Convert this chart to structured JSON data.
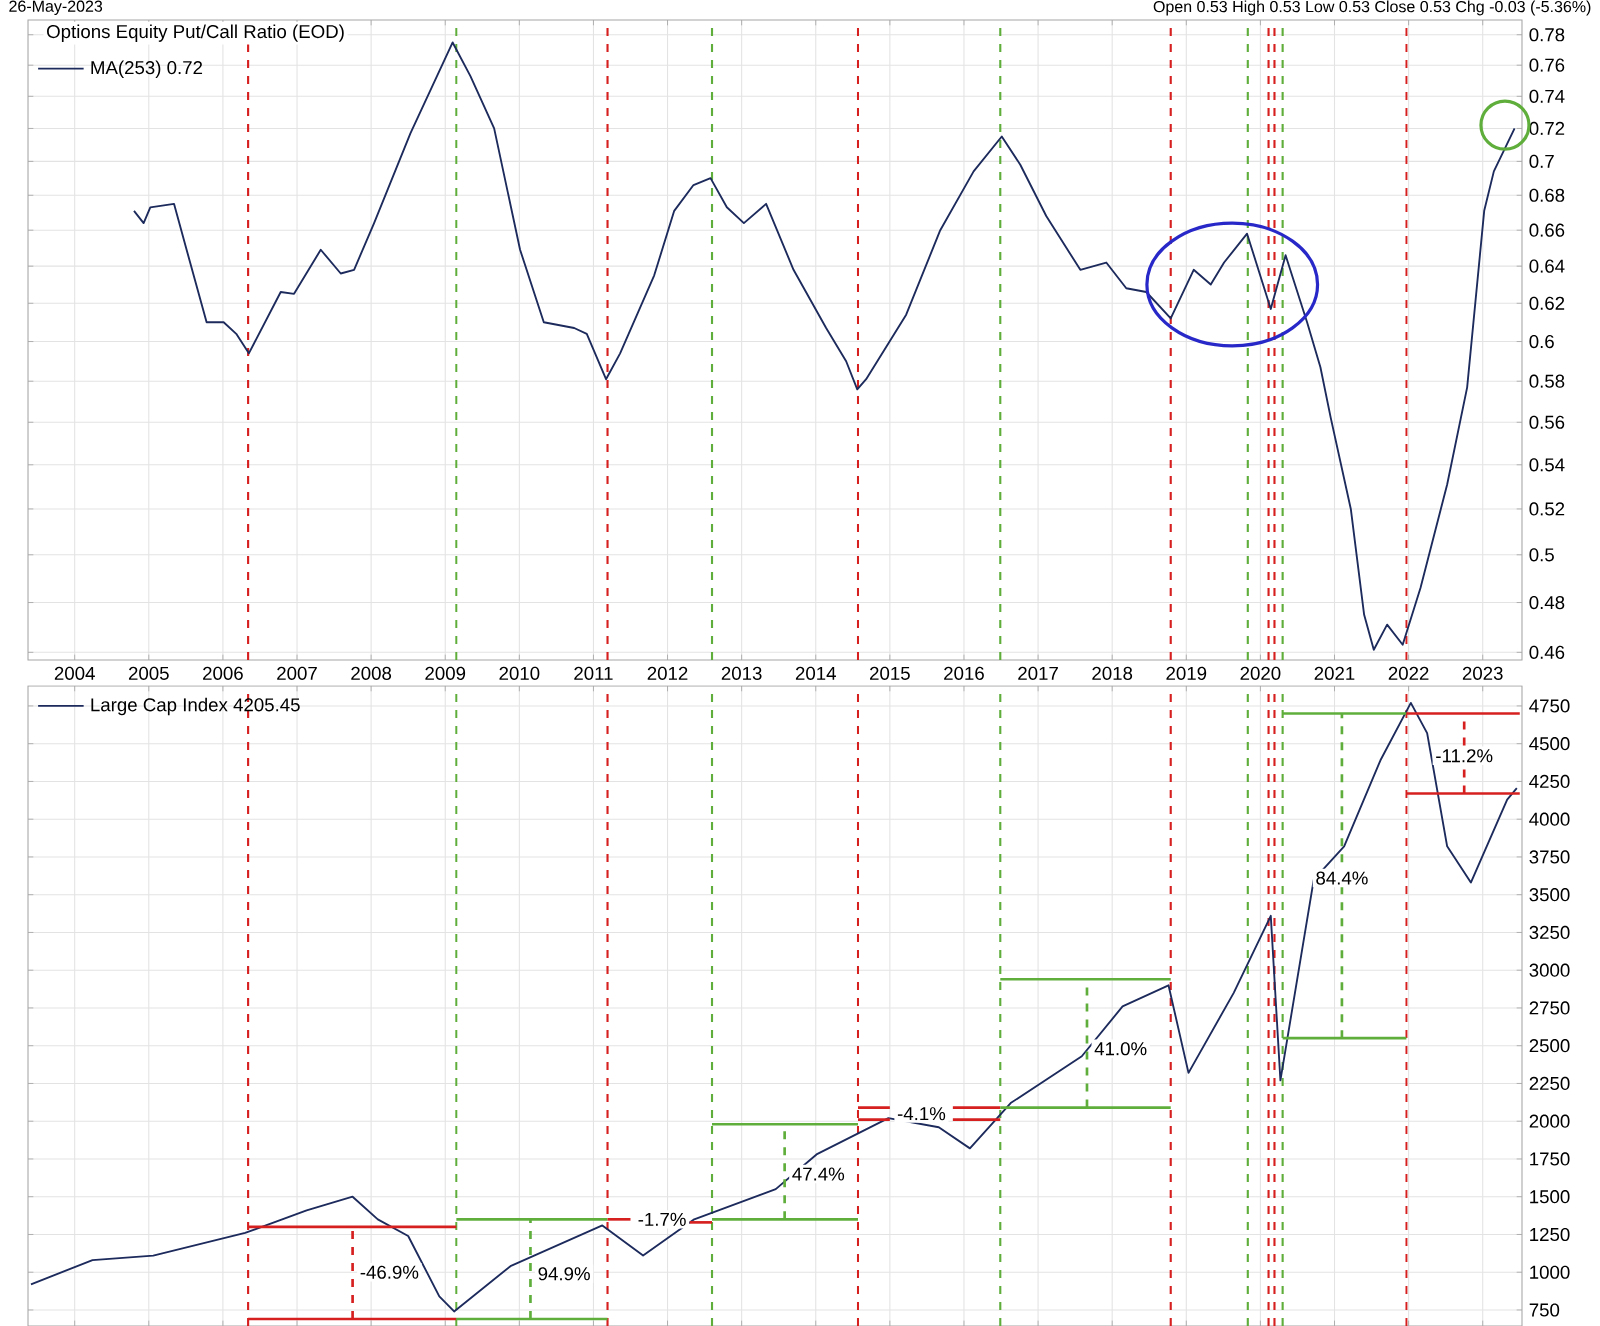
{
  "chart_data": [
    {
      "type": "line",
      "title": "Options Equity Put/Call Ratio (EOD)",
      "log": true,
      "grid": true,
      "legend": "top left",
      "annotations": [
        "26-May-2023",
        "Open 0.53 High 0.53 Low 0.53 Close 0.53 Chg -0.03 (-5.36%)"
      ],
      "xlim": [
        2003.37,
        2023.53
      ],
      "ylim": [
        0.457,
        0.79
      ],
      "xticks": [
        2004,
        2005,
        2006,
        2007,
        2008,
        2009,
        2010,
        2011,
        2012,
        2013,
        2014,
        2015,
        2016,
        2017,
        2018,
        2019,
        2020,
        2021,
        2022,
        2023
      ],
      "yticks": [
        0.46,
        0.48,
        0.5,
        0.52,
        0.54,
        0.56,
        0.58,
        0.6,
        0.62,
        0.64,
        0.66,
        0.68,
        0.7,
        0.72,
        0.74,
        0.76,
        0.78
      ],
      "ref_lines": [
        {
          "axis": "x",
          "value": 2006.34,
          "color": "#d62020",
          "line_style": "dashed"
        },
        {
          "axis": "x",
          "value": 2009.15,
          "color": "#5fae3c",
          "line_style": "dashed"
        },
        {
          "axis": "x",
          "value": 2011.19,
          "color": "#d62020",
          "line_style": "dashed"
        },
        {
          "axis": "x",
          "value": 2012.6,
          "color": "#5fae3c",
          "line_style": "dashed"
        },
        {
          "axis": "x",
          "value": 2014.57,
          "color": "#d62020",
          "line_style": "dashed"
        },
        {
          "axis": "x",
          "value": 2016.49,
          "color": "#5fae3c",
          "line_style": "dashed"
        },
        {
          "axis": "x",
          "value": 2018.79,
          "color": "#d62020",
          "line_style": "dashed"
        },
        {
          "axis": "x",
          "value": 2019.83,
          "color": "#5fae3c",
          "line_style": "dashed"
        },
        {
          "axis": "x",
          "value": 2020.11,
          "color": "#d62020",
          "line_style": "dashed"
        },
        {
          "axis": "x",
          "value": 2020.19,
          "color": "#d62020",
          "line_style": "dashed"
        },
        {
          "axis": "x",
          "value": 2020.3,
          "color": "#5fae3c",
          "line_style": "dashed"
        },
        {
          "axis": "x",
          "value": 2021.97,
          "color": "#d62020",
          "line_style": "dashed"
        }
      ],
      "series": [
        {
          "name": "MA(253) 0.72",
          "color": "#1c2a5c",
          "line_style": "solid",
          "x": [
            2004.8,
            2004.93,
            2005.02,
            2005.34,
            2005.51,
            2005.78,
            2006.01,
            2006.18,
            2006.35,
            2006.78,
            2006.96,
            2007.32,
            2007.59,
            2007.77,
            2008.04,
            2008.53,
            2009.1,
            2009.34,
            2009.66,
            2010.01,
            2010.33,
            2010.74,
            2010.91,
            2011.17,
            2011.36,
            2011.82,
            2012.09,
            2012.35,
            2012.58,
            2012.8,
            2013.03,
            2013.33,
            2013.7,
            2014.14,
            2014.41,
            2014.56,
            2014.68,
            2015.22,
            2015.68,
            2016.13,
            2016.51,
            2016.76,
            2017.11,
            2017.57,
            2017.92,
            2018.19,
            2018.46,
            2018.79,
            2019.1,
            2019.33,
            2019.51,
            2019.82,
            2020.14,
            2020.34,
            2020.63,
            2020.81,
            2020.95,
            2021.22,
            2021.4,
            2021.53,
            2021.71,
            2021.92,
            2022.16,
            2022.52,
            2022.79,
            2023.02,
            2023.15,
            2023.43
          ],
          "values": [
            0.671,
            0.664,
            0.673,
            0.675,
            0.649,
            0.61,
            0.61,
            0.604,
            0.594,
            0.626,
            0.625,
            0.649,
            0.636,
            0.638,
            0.664,
            0.717,
            0.775,
            0.753,
            0.72,
            0.649,
            0.61,
            0.607,
            0.604,
            0.581,
            0.594,
            0.635,
            0.671,
            0.686,
            0.69,
            0.673,
            0.664,
            0.675,
            0.638,
            0.607,
            0.59,
            0.576,
            0.581,
            0.614,
            0.66,
            0.694,
            0.715,
            0.698,
            0.668,
            0.638,
            0.642,
            0.628,
            0.626,
            0.612,
            0.638,
            0.63,
            0.642,
            0.658,
            0.617,
            0.646,
            0.61,
            0.587,
            0.562,
            0.52,
            0.475,
            0.461,
            0.471,
            0.463,
            0.486,
            0.531,
            0.577,
            0.671,
            0.694,
            0.72
          ]
        }
      ]
    },
    {
      "type": "line",
      "grid": true,
      "legend": "top left",
      "tick_labels": "y",
      "xlim": [
        2003.37,
        2023.53
      ],
      "ylim": [
        644,
        4882
      ],
      "xticks": [
        2004,
        2005,
        2006,
        2007,
        2008,
        2009,
        2010,
        2011,
        2012,
        2013,
        2014,
        2015,
        2016,
        2017,
        2018,
        2019,
        2020,
        2021,
        2022,
        2023
      ],
      "yticks": [
        750,
        1000,
        1250,
        1500,
        1750,
        2000,
        2250,
        2500,
        2750,
        3000,
        3250,
        3500,
        3750,
        4000,
        4250,
        4500,
        4750
      ],
      "ref_lines": [
        {
          "axis": "x",
          "value": 2006.34,
          "color": "#d62020",
          "line_style": "dashed"
        },
        {
          "axis": "x",
          "value": 2009.15,
          "color": "#5fae3c",
          "line_style": "dashed"
        },
        {
          "axis": "x",
          "value": 2011.19,
          "color": "#d62020",
          "line_style": "dashed"
        },
        {
          "axis": "x",
          "value": 2012.6,
          "color": "#5fae3c",
          "line_style": "dashed"
        },
        {
          "axis": "x",
          "value": 2014.57,
          "color": "#d62020",
          "line_style": "dashed"
        },
        {
          "axis": "x",
          "value": 2016.49,
          "color": "#5fae3c",
          "line_style": "dashed"
        },
        {
          "axis": "x",
          "value": 2018.79,
          "color": "#d62020",
          "line_style": "dashed"
        },
        {
          "axis": "x",
          "value": 2019.83,
          "color": "#5fae3c",
          "line_style": "dashed"
        },
        {
          "axis": "x",
          "value": 2020.11,
          "color": "#d62020",
          "line_style": "dashed"
        },
        {
          "axis": "x",
          "value": 2020.19,
          "color": "#d62020",
          "line_style": "dashed"
        },
        {
          "axis": "x",
          "value": 2020.3,
          "color": "#5fae3c",
          "line_style": "dashed"
        },
        {
          "axis": "x",
          "value": 2021.97,
          "color": "#d62020",
          "line_style": "dashed"
        }
      ],
      "annotations": [
        {
          "text": "-46.9%",
          "x": 2007.75,
          "y": 1000
        },
        {
          "text": "94.9%",
          "x": 2010.15,
          "y": 990
        },
        {
          "text": "-1.7%",
          "x": 2011.5,
          "y": 1350
        },
        {
          "text": "47.4%",
          "x": 2013.58,
          "y": 1650
        },
        {
          "text": "-4.1%",
          "x": 2015.0,
          "y": 2050
        },
        {
          "text": "41.0%",
          "x": 2017.66,
          "y": 2480
        },
        {
          "text": "84.4%",
          "x": 2021.1,
          "y": 3610
        },
        {
          "text": "-11.2%",
          "x": 2022.75,
          "y": 4420
        }
      ],
      "series": [
        {
          "name": "Large Cap Index 4205.45",
          "color": "#1c2a5c",
          "line_style": "solid",
          "x": [
            2003.41,
            2004.24,
            2005.06,
            2006.3,
            2007.13,
            2007.75,
            2008.09,
            2008.5,
            2008.92,
            2009.12,
            2009.88,
            2011.12,
            2011.67,
            2012.36,
            2013.46,
            2014.01,
            2014.98,
            2015.66,
            2016.08,
            2016.63,
            2017.59,
            2018.14,
            2018.76,
            2019.03,
            2019.64,
            2020.14,
            2020.27,
            2020.72,
            2021.13,
            2021.62,
            2022.03,
            2022.25,
            2022.52,
            2022.84,
            2023.33,
            2023.46
          ],
          "values": [
            920,
            1080,
            1110,
            1260,
            1410,
            1500,
            1350,
            1240,
            840,
            740,
            1040,
            1310,
            1110,
            1350,
            1550,
            1780,
            2020,
            1960,
            1820,
            2120,
            2430,
            2760,
            2900,
            2320,
            2850,
            3360,
            2270,
            3600,
            3820,
            4390,
            4770,
            4570,
            3820,
            3580,
            4130,
            4205
          ]
        },
        {
          "color": "#d62020",
          "line_style": "solid",
          "x": [
            2006.34,
            2009.15
          ],
          "values": [
            1300,
            1300
          ]
        },
        {
          "color": "#d62020",
          "line_style": "solid",
          "x": [
            2006.34,
            2009.15
          ],
          "values": [
            690,
            690
          ]
        },
        {
          "color": "#d62020",
          "line_style": "dashed",
          "x": [
            2007.75,
            2007.75
          ],
          "values": [
            690,
            1300
          ]
        },
        {
          "color": "#5fae3c",
          "line_style": "solid",
          "x": [
            2009.15,
            2011.19
          ],
          "values": [
            1350,
            1350
          ]
        },
        {
          "color": "#5fae3c",
          "line_style": "solid",
          "x": [
            2009.15,
            2011.19
          ],
          "values": [
            690,
            690
          ]
        },
        {
          "color": "#5fae3c",
          "line_style": "dashed",
          "x": [
            2010.15,
            2010.15
          ],
          "values": [
            690,
            1350
          ]
        },
        {
          "color": "#d62020",
          "line_style": "solid",
          "x": [
            2011.19,
            2011.5
          ],
          "values": [
            1350,
            1350
          ]
        },
        {
          "color": "#d62020",
          "line_style": "solid",
          "x": [
            2012.3,
            2012.6
          ],
          "values": [
            1330,
            1330
          ]
        },
        {
          "color": "#5fae3c",
          "line_style": "solid",
          "x": [
            2012.6,
            2014.57
          ],
          "values": [
            1350,
            1350
          ]
        },
        {
          "color": "#5fae3c",
          "line_style": "solid",
          "x": [
            2012.6,
            2014.57
          ],
          "values": [
            1980,
            1980
          ]
        },
        {
          "color": "#5fae3c",
          "line_style": "dashed",
          "x": [
            2013.58,
            2013.58
          ],
          "values": [
            1350,
            1980
          ]
        },
        {
          "color": "#d62020",
          "line_style": "solid",
          "x": [
            2014.57,
            2015.0,
            2015.4,
            2015.85,
            2016.49
          ],
          "values": [
            2090,
            2090,
            null,
            2090,
            2090
          ]
        },
        {
          "color": "#d62020",
          "line_style": "solid",
          "x": [
            2014.57,
            2015.0,
            2015.4,
            2015.85,
            2016.49
          ],
          "values": [
            2010,
            2010,
            null,
            2010,
            2010
          ]
        },
        {
          "color": "#5fae3c",
          "line_style": "solid",
          "x": [
            2016.49,
            2018.79
          ],
          "values": [
            2090,
            2090
          ]
        },
        {
          "color": "#5fae3c",
          "line_style": "solid",
          "x": [
            2016.49,
            2018.79
          ],
          "values": [
            2940,
            2940
          ]
        },
        {
          "color": "#5fae3c",
          "line_style": "dashed",
          "x": [
            2017.66,
            2017.66
          ],
          "values": [
            2090,
            2940
          ]
        },
        {
          "color": "#5fae3c",
          "line_style": "solid",
          "x": [
            2020.3,
            2021.97
          ],
          "values": [
            2550,
            2550
          ]
        },
        {
          "color": "#5fae3c",
          "line_style": "solid",
          "x": [
            2020.3,
            2021.97
          ],
          "values": [
            4700,
            4700
          ]
        },
        {
          "color": "#5fae3c",
          "line_style": "dashed",
          "x": [
            2021.1,
            2021.1
          ],
          "values": [
            2550,
            4700
          ]
        },
        {
          "color": "#d62020",
          "line_style": "solid",
          "x": [
            2021.97,
            2023.5
          ],
          "values": [
            4700,
            4700
          ]
        },
        {
          "color": "#d62020",
          "line_style": "solid",
          "x": [
            2021.97,
            2023.5
          ],
          "values": [
            4170,
            4170
          ]
        },
        {
          "color": "#d62020",
          "line_style": "dashed",
          "x": [
            2022.75,
            2022.75
          ],
          "values": [
            4170,
            4700
          ]
        }
      ]
    }
  ]
}
